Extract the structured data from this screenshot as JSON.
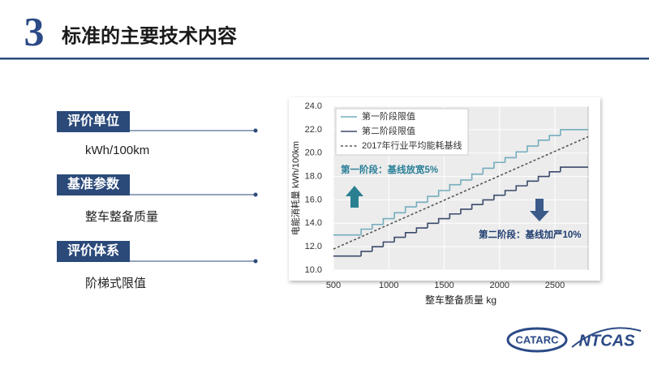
{
  "header": {
    "number": "3",
    "title": "标准的主要技术内容"
  },
  "sections": [
    {
      "label": "评价单位",
      "text": "kWh/100km"
    },
    {
      "label": "基准参数",
      "text": "整车整备质量"
    },
    {
      "label": "评价体系",
      "text": "阶梯式限值"
    }
  ],
  "logos": [
    "CATARC",
    "NTCAS"
  ],
  "chart_data": {
    "type": "line",
    "step": "post",
    "x_label": "整车整备质量 kg",
    "y_label": "电能消耗量 kWh/100km",
    "xlim": [
      500,
      2800
    ],
    "ylim": [
      10,
      24
    ],
    "xticks": [
      500,
      1000,
      1500,
      2000,
      2500
    ],
    "yticks": [
      {
        "value": 10,
        "label": "10.0"
      },
      {
        "value": 12,
        "label": "12.0"
      },
      {
        "value": 14,
        "label": "14.0"
      },
      {
        "value": 16,
        "label": "16.0"
      },
      {
        "value": 18,
        "label": "18.0"
      },
      {
        "value": 20,
        "label": "20.0"
      },
      {
        "value": 22,
        "label": "22.0"
      },
      {
        "value": 24,
        "label": "24.0"
      }
    ],
    "grid": true,
    "legend": "upper left",
    "series": [
      {
        "name": "第一阶段限值",
        "color": "#74adbd",
        "dash": false,
        "x": [
          500,
          750,
          850,
          950,
          1050,
          1150,
          1250,
          1350,
          1450,
          1550,
          1650,
          1750,
          1850,
          1950,
          2050,
          2150,
          2250,
          2350,
          2450,
          2550,
          2800
        ],
        "values": [
          13.0,
          13.5,
          13.9,
          14.4,
          14.9,
          15.4,
          15.8,
          16.3,
          16.8,
          17.3,
          17.7,
          18.2,
          18.7,
          19.2,
          19.6,
          20.1,
          20.6,
          21.1,
          21.5,
          22.0,
          22.0
        ]
      },
      {
        "name": "第二阶段限值",
        "color": "#3b4a6b",
        "dash": false,
        "x": [
          500,
          750,
          850,
          950,
          1050,
          1150,
          1250,
          1350,
          1450,
          1550,
          1650,
          1750,
          1850,
          1950,
          2050,
          2150,
          2250,
          2350,
          2450,
          2550,
          2800
        ],
        "values": [
          11.2,
          11.6,
          12.0,
          12.4,
          12.8,
          13.2,
          13.6,
          14.0,
          14.4,
          14.8,
          15.2,
          15.6,
          16.0,
          16.4,
          16.8,
          17.2,
          17.6,
          18.0,
          18.4,
          18.8,
          18.8
        ]
      },
      {
        "name": "2017年行业平均能耗基线",
        "color": "#555555",
        "dash": true,
        "x": [
          500,
          2800
        ],
        "values": [
          11.8,
          21.4
        ]
      }
    ],
    "annotations": [
      "第一阶段：基线放宽5%",
      "第二阶段：基线加严10%"
    ]
  }
}
